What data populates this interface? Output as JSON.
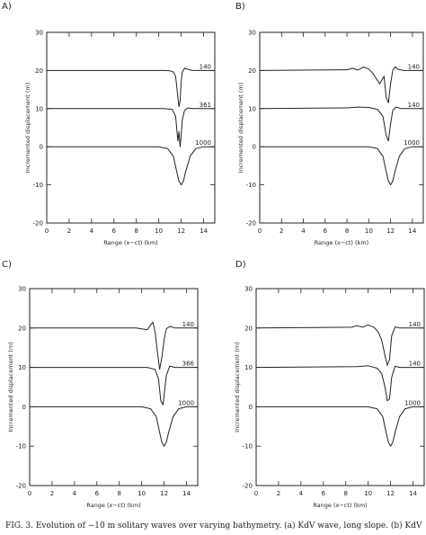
{
  "caption": "FIG. 3. Evolution of −10 m solitary waves over varying bathymetry. (a) KdV wave, long slope. (b) KdV",
  "chart_data": [
    {
      "type": "line",
      "panel_label": "A)",
      "xlabel": "Range (x−ct) (km)",
      "ylabel": "Incremented displacement (m)",
      "xlim": [
        0,
        15
      ],
      "ylim": [
        -20,
        30
      ],
      "xticks": [
        0,
        2,
        4,
        6,
        8,
        10,
        12,
        14
      ],
      "yticks": [
        -20,
        -10,
        0,
        10,
        20,
        30
      ],
      "grid": false,
      "series": [
        {
          "name": "140",
          "baseline": 20,
          "x": [
            0,
            10.5,
            11.0,
            11.3,
            11.5,
            11.7,
            11.8,
            11.9,
            12.0,
            12.1,
            12.3,
            12.6,
            13.0,
            15
          ],
          "y": [
            20,
            20,
            19.9,
            19.6,
            18.5,
            13,
            10.5,
            12,
            17,
            19.5,
            20.6,
            20.3,
            20,
            20
          ]
        },
        {
          "name": "361",
          "baseline": 10,
          "x": [
            0,
            10.5,
            11.2,
            11.5,
            11.7,
            11.8,
            11.9,
            12.0,
            12.1,
            12.3,
            12.6,
            13.0,
            15
          ],
          "y": [
            10,
            10,
            9.8,
            8,
            1.5,
            4,
            0,
            3,
            7,
            9.5,
            10.2,
            10,
            10
          ]
        },
        {
          "name": "1000",
          "baseline": 0,
          "x": [
            0,
            10.0,
            10.8,
            11.3,
            11.6,
            11.8,
            12.0,
            12.2,
            12.4,
            12.8,
            13.3,
            14.0,
            15
          ],
          "y": [
            0,
            0,
            -0.5,
            -2.5,
            -6.5,
            -9,
            -10,
            -9,
            -6.5,
            -2.5,
            -0.5,
            0,
            0
          ]
        }
      ]
    },
    {
      "type": "line",
      "panel_label": "B)",
      "xlabel": "Range (x−ct) (km)",
      "ylabel": "Incremented displacement (m)",
      "xlim": [
        0,
        15
      ],
      "ylim": [
        -20,
        30
      ],
      "xticks": [
        0,
        2,
        4,
        6,
        8,
        10,
        12,
        14
      ],
      "yticks": [
        -20,
        -10,
        0,
        10,
        20,
        30
      ],
      "grid": false,
      "series": [
        {
          "name": "140",
          "baseline": 20,
          "x": [
            0,
            8.0,
            8.5,
            9.0,
            9.5,
            10.0,
            10.4,
            10.7,
            11.0,
            11.2,
            11.4,
            11.6,
            11.8,
            12.0,
            12.2,
            12.4,
            12.7,
            13.2,
            15
          ],
          "y": [
            20,
            20.2,
            20.6,
            20.1,
            20.9,
            20.4,
            19.2,
            17.8,
            16.5,
            17.5,
            18.5,
            13,
            11.5,
            16.5,
            20,
            21,
            20.3,
            20,
            20
          ]
        },
        {
          "name": "140",
          "baseline": 10,
          "x": [
            0,
            8.0,
            9.0,
            10.0,
            10.8,
            11.3,
            11.6,
            11.8,
            12.0,
            12.2,
            12.5,
            13.0,
            15
          ],
          "y": [
            10,
            10.2,
            10.4,
            10.3,
            9.8,
            8,
            3,
            1.5,
            6,
            9.5,
            10.4,
            10,
            10
          ]
        },
        {
          "name": "1000",
          "baseline": 0,
          "x": [
            0,
            10.0,
            10.8,
            11.3,
            11.6,
            11.8,
            12.0,
            12.2,
            12.4,
            12.8,
            13.3,
            14.0,
            15
          ],
          "y": [
            0,
            0,
            -0.5,
            -2.5,
            -6.5,
            -9,
            -10,
            -9,
            -6.5,
            -2.5,
            -0.5,
            0,
            0
          ]
        }
      ]
    },
    {
      "type": "line",
      "panel_label": "C)",
      "xlabel": "Range (x−ct) (km)",
      "ylabel": "Incremented displacement (m)",
      "xlim": [
        0,
        15
      ],
      "ylim": [
        -20,
        30
      ],
      "xticks": [
        0,
        2,
        4,
        6,
        8,
        10,
        12,
        14
      ],
      "yticks": [
        -20,
        -10,
        0,
        10,
        20,
        30
      ],
      "grid": false,
      "series": [
        {
          "name": "140",
          "baseline": 20,
          "x": [
            0,
            9.5,
            10.0,
            10.5,
            11.0,
            11.2,
            11.4,
            11.6,
            11.8,
            12.0,
            12.2,
            12.5,
            13.0,
            15
          ],
          "y": [
            20,
            20,
            19.8,
            19.6,
            21.5,
            19,
            14,
            9.5,
            12.5,
            17,
            19.8,
            20.4,
            20,
            20
          ]
        },
        {
          "name": "366",
          "baseline": 10,
          "x": [
            0,
            10.5,
            11.2,
            11.5,
            11.7,
            11.9,
            12.0,
            12.2,
            12.5,
            13.0,
            15
          ],
          "y": [
            10,
            10,
            9.5,
            7,
            1.5,
            0.5,
            3,
            8,
            10.3,
            10,
            10
          ]
        },
        {
          "name": "1000",
          "baseline": 0,
          "x": [
            0,
            10.0,
            10.8,
            11.3,
            11.6,
            11.8,
            12.0,
            12.2,
            12.4,
            12.8,
            13.3,
            14.0,
            15
          ],
          "y": [
            0,
            0,
            -0.5,
            -2.5,
            -6.5,
            -9,
            -10,
            -9,
            -6.5,
            -2.5,
            -0.5,
            0,
            0
          ]
        }
      ]
    },
    {
      "type": "line",
      "panel_label": "D)",
      "xlabel": "Range (x−ct) (km)",
      "ylabel": "Incremented displacement (m)",
      "xlim": [
        0,
        15
      ],
      "ylim": [
        -20,
        30
      ],
      "xticks": [
        0,
        2,
        4,
        6,
        8,
        10,
        12,
        14
      ],
      "yticks": [
        -20,
        -10,
        0,
        10,
        20,
        30
      ],
      "grid": false,
      "series": [
        {
          "name": "140",
          "baseline": 20,
          "x": [
            0,
            8.5,
            9.0,
            9.5,
            10.0,
            10.5,
            10.9,
            11.2,
            11.5,
            11.7,
            11.9,
            12.1,
            12.4,
            12.8,
            15
          ],
          "y": [
            20,
            20.2,
            20.6,
            20.2,
            20.8,
            20.2,
            19,
            17,
            13,
            10.5,
            12,
            18,
            20.3,
            20,
            20
          ]
        },
        {
          "name": "140",
          "baseline": 10,
          "x": [
            0,
            9.0,
            10.0,
            10.8,
            11.2,
            11.5,
            11.7,
            11.9,
            12.1,
            12.4,
            12.8,
            15
          ],
          "y": [
            10,
            10.2,
            10.4,
            9.8,
            8.5,
            5,
            1.5,
            2,
            7.5,
            10.3,
            10,
            10
          ]
        },
        {
          "name": "1000",
          "baseline": 0,
          "x": [
            0,
            10.0,
            10.8,
            11.3,
            11.6,
            11.8,
            12.0,
            12.2,
            12.4,
            12.8,
            13.3,
            14.0,
            15
          ],
          "y": [
            0,
            0,
            -0.5,
            -2.5,
            -6.5,
            -9,
            -10,
            -9,
            -6.5,
            -2.5,
            -0.5,
            0,
            0
          ]
        }
      ]
    }
  ]
}
